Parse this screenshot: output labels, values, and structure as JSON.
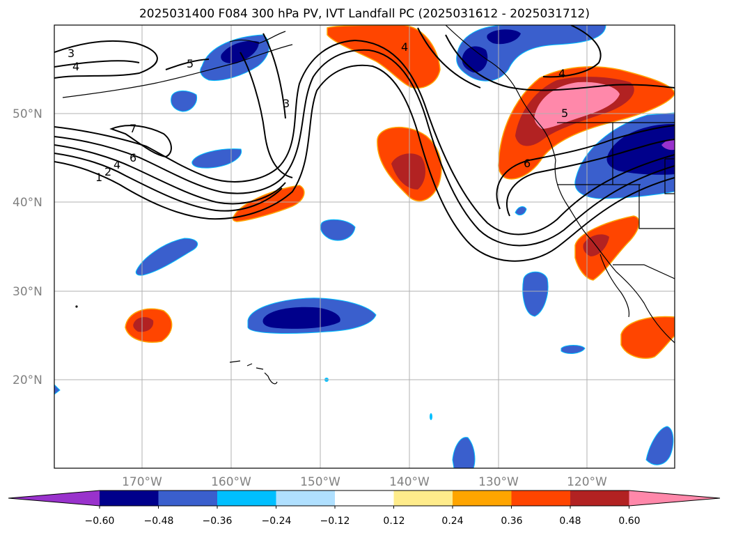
{
  "title": "2025031400 F084 300 hPa PV, IVT Landfall PC (2025031612 - 2025031712)",
  "lat_labels": [
    "50°N",
    "40°N",
    "30°N",
    "20°N"
  ],
  "lon_labels": [
    "170°W",
    "160°W",
    "150°W",
    "140°W",
    "130°W",
    "120°W"
  ],
  "colorbar": {
    "ticks": [
      "−0.60",
      "−0.48",
      "−0.36",
      "−0.24",
      "−0.12",
      "0.12",
      "0.24",
      "0.36",
      "0.48",
      "0.60"
    ],
    "colors": [
      "#9932cc",
      "#00008b",
      "#3a5fcd",
      "#00bfff",
      "#b0e0ff",
      "#ffffff",
      "#ffec8b",
      "#ffa500",
      "#ff4500",
      "#b22222",
      "#ff88aa"
    ]
  },
  "contour_labels": [
    "3",
    "4",
    "5",
    "3",
    "7",
    "6",
    "4",
    "2",
    "1",
    "4",
    "4",
    "5",
    "6"
  ],
  "colors": {
    "grid": "#b0b0b0",
    "contour": "#000000",
    "coast": "#000000"
  }
}
